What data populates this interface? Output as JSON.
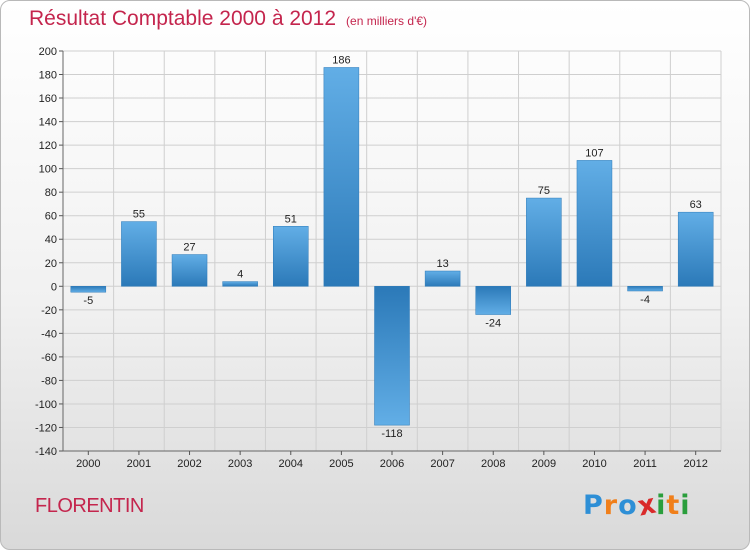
{
  "header": {
    "title": "Résultat Comptable 2000 à 2012",
    "unit_note": "(en milliers d'€)"
  },
  "footer": {
    "city": "FLORENTIN",
    "logo": {
      "letters": [
        "P",
        "r",
        "o",
        "x",
        "i",
        "t",
        "i"
      ],
      "colors": [
        "#2e8fd6",
        "#f07f1a",
        "#2e8fd6",
        "#d92a2a",
        "#2a9e3c",
        "#f07f1a",
        "#2a9e3c"
      ]
    }
  },
  "colors": {
    "accent": "#c4254d",
    "bar_dark": "#2b79b8",
    "bar_light": "#62aee6"
  },
  "chart_data": {
    "type": "bar",
    "title": "Résultat Comptable 2000 à 2012",
    "subtitle": "(en milliers d'€)",
    "xlabel": "",
    "ylabel": "",
    "categories": [
      "2000",
      "2001",
      "2002",
      "2003",
      "2004",
      "2005",
      "2006",
      "2007",
      "2008",
      "2009",
      "2010",
      "2011",
      "2012"
    ],
    "values": [
      -5,
      55,
      27,
      4,
      51,
      186,
      -118,
      13,
      -24,
      75,
      107,
      -4,
      63
    ],
    "ylim": [
      -140,
      200
    ],
    "yticks": [
      200,
      180,
      160,
      140,
      120,
      100,
      80,
      60,
      40,
      20,
      0,
      -20,
      -40,
      -60,
      -80,
      -100,
      -120,
      -140
    ],
    "grid": true
  }
}
